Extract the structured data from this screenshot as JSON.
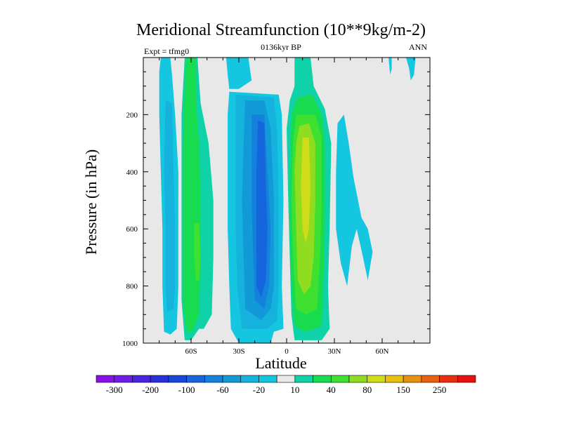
{
  "chart_data": {
    "type": "contour",
    "title": "Meridional Streamfunction (10**9kg/m-2)",
    "subtitle": "0136kyr BP",
    "left_label": "Expt = tfmg0",
    "right_label": "ANN",
    "xlabel": "Latitude",
    "ylabel": "Pressure (in hPa)",
    "x_range": [
      -90,
      90
    ],
    "y_range": [
      0,
      1000
    ],
    "y_reversed": true,
    "x_ticks": [
      {
        "value": -60,
        "label": "60S"
      },
      {
        "value": -30,
        "label": "30S"
      },
      {
        "value": 0,
        "label": "0"
      },
      {
        "value": 30,
        "label": "30N"
      },
      {
        "value": 60,
        "label": "60N"
      }
    ],
    "y_ticks": [
      {
        "value": 200,
        "label": "200"
      },
      {
        "value": 400,
        "label": "400"
      },
      {
        "value": 600,
        "label": "600"
      },
      {
        "value": 800,
        "label": "800"
      },
      {
        "value": 1000,
        "label": "1000"
      }
    ],
    "colorbar": {
      "levels": [
        -300,
        -250,
        -200,
        -150,
        -100,
        -80,
        -60,
        -40,
        -20,
        -10,
        10,
        20,
        40,
        60,
        80,
        100,
        150,
        200,
        250,
        300
      ],
      "colors": [
        "#8a10e8",
        "#6f1ce8",
        "#4a24e0",
        "#2a30d8",
        "#1848d8",
        "#1565dc",
        "#1482dc",
        "#129ad8",
        "#14b2dc",
        "#14c6e0",
        "#e8e8e8",
        "#10d2a8",
        "#18dc50",
        "#40e030",
        "#90dc20",
        "#d0dc18",
        "#e8c010",
        "#e89010",
        "#e86010",
        "#e83010",
        "#e81010"
      ],
      "labels": [
        {
          "level": -300,
          "label": "-300"
        },
        {
          "level": -200,
          "label": "-200"
        },
        {
          "level": -100,
          "label": "-100"
        },
        {
          "level": -60,
          "label": "-60"
        },
        {
          "level": -20,
          "label": "-20"
        },
        {
          "level": 10,
          "label": "10"
        },
        {
          "level": 40,
          "label": "40"
        },
        {
          "level": 80,
          "label": "80"
        },
        {
          "level": 150,
          "label": "150"
        },
        {
          "level": 250,
          "label": "250"
        }
      ]
    },
    "contour_regions": [
      {
        "name": "sh-polar-cell-outer",
        "level": -10,
        "points": [
          [
            -79,
            0
          ],
          [
            -73,
            0
          ],
          [
            -72,
            60
          ],
          [
            -70,
            200
          ],
          [
            -68,
            400
          ],
          [
            -68,
            600
          ],
          [
            -68,
            800
          ],
          [
            -69,
            950
          ],
          [
            -73,
            970
          ],
          [
            -77,
            960
          ],
          [
            -78,
            800
          ],
          [
            -78,
            600
          ],
          [
            -79,
            400
          ],
          [
            -80,
            200
          ],
          [
            -80,
            50
          ]
        ]
      },
      {
        "name": "sh-polar-cell-inner",
        "level": -20,
        "points": [
          [
            -76,
            150
          ],
          [
            -72,
            160
          ],
          [
            -71,
            400
          ],
          [
            -70,
            600
          ],
          [
            -70,
            800
          ],
          [
            -71,
            880
          ],
          [
            -75,
            890
          ],
          [
            -76,
            800
          ],
          [
            -76,
            600
          ],
          [
            -77,
            400
          ]
        ]
      },
      {
        "name": "sh-ferrel-cell-outer",
        "level": 10,
        "points": [
          [
            -64,
            0
          ],
          [
            -56,
            0
          ],
          [
            -56,
            150
          ],
          [
            -54,
            250
          ],
          [
            -52,
            400
          ],
          [
            -52,
            600
          ],
          [
            -52,
            800
          ],
          [
            -55,
            950
          ],
          [
            -60,
            990
          ],
          [
            -64,
            990
          ],
          [
            -66,
            850
          ],
          [
            -66,
            600
          ],
          [
            -66,
            400
          ],
          [
            -66,
            200
          ]
        ]
      },
      {
        "name": "sh-ferrel-cell-outer-fringe",
        "level": 10,
        "points": [
          [
            -60,
            0
          ],
          [
            -56,
            0
          ],
          [
            -54,
            160
          ],
          [
            -49,
            300
          ],
          [
            -46,
            500
          ],
          [
            -46,
            700
          ],
          [
            -47,
            900
          ],
          [
            -52,
            950
          ],
          [
            -56,
            950
          ],
          [
            -56,
            700
          ],
          [
            -57,
            400
          ],
          [
            -58,
            200
          ]
        ]
      },
      {
        "name": "sh-ferrel-cell-inner",
        "level": 20,
        "points": [
          [
            -63,
            0
          ],
          [
            -57,
            0
          ],
          [
            -57,
            150
          ],
          [
            -55,
            300
          ],
          [
            -54,
            500
          ],
          [
            -54,
            700
          ],
          [
            -55,
            900
          ],
          [
            -59,
            960
          ],
          [
            -63,
            960
          ],
          [
            -65,
            850
          ],
          [
            -65,
            600
          ],
          [
            -65,
            300
          ],
          [
            -64,
            100
          ]
        ]
      },
      {
        "name": "sh-ferrel-cell-core",
        "level": 40,
        "points": [
          [
            -58,
            580
          ],
          [
            -55,
            580
          ],
          [
            -54,
            700
          ],
          [
            -55,
            780
          ],
          [
            -57,
            780
          ],
          [
            -58,
            700
          ]
        ]
      },
      {
        "name": "sh-hadley-fringe",
        "level": -10,
        "points": [
          [
            -38,
            0
          ],
          [
            -24,
            0
          ],
          [
            -22,
            80
          ],
          [
            -30,
            110
          ],
          [
            -36,
            110
          ],
          [
            -37,
            60
          ]
        ]
      },
      {
        "name": "sh-hadley-cell-outer",
        "level": -10,
        "points": [
          [
            -36,
            120
          ],
          [
            -5,
            130
          ],
          [
            -3,
            200
          ],
          [
            -2,
            500
          ],
          [
            -3,
            800
          ],
          [
            -2,
            950
          ],
          [
            -8,
            960
          ],
          [
            -10,
            1000
          ],
          [
            -30,
            1000
          ],
          [
            -35,
            950
          ],
          [
            -36,
            800
          ],
          [
            -37,
            600
          ],
          [
            -37,
            400
          ],
          [
            -37,
            200
          ]
        ]
      },
      {
        "name": "sh-hadley-cell-mid",
        "level": -20,
        "points": [
          [
            -32,
            130
          ],
          [
            -8,
            140
          ],
          [
            -6,
            250
          ],
          [
            -5,
            500
          ],
          [
            -5,
            800
          ],
          [
            -6,
            920
          ],
          [
            -12,
            950
          ],
          [
            -28,
            950
          ],
          [
            -31,
            800
          ],
          [
            -32,
            600
          ],
          [
            -32,
            400
          ],
          [
            -32,
            200
          ]
        ]
      },
      {
        "name": "sh-hadley-cell-inner",
        "level": -40,
        "points": [
          [
            -26,
            150
          ],
          [
            -14,
            150
          ],
          [
            -10,
            250
          ],
          [
            -8,
            500
          ],
          [
            -8,
            800
          ],
          [
            -10,
            880
          ],
          [
            -16,
            920
          ],
          [
            -26,
            880
          ],
          [
            -27,
            700
          ],
          [
            -28,
            500
          ],
          [
            -27,
            300
          ]
        ]
      },
      {
        "name": "sh-hadley-cell-core",
        "level": -60,
        "points": [
          [
            -22,
            200
          ],
          [
            -14,
            200
          ],
          [
            -12,
            400
          ],
          [
            -10,
            600
          ],
          [
            -11,
            800
          ],
          [
            -14,
            880
          ],
          [
            -20,
            850
          ],
          [
            -21,
            700
          ],
          [
            -22,
            500
          ]
        ]
      },
      {
        "name": "sh-hadley-cell-center",
        "level": -80,
        "points": [
          [
            -18,
            220
          ],
          [
            -14,
            230
          ],
          [
            -13,
            450
          ],
          [
            -12,
            600
          ],
          [
            -13,
            780
          ],
          [
            -16,
            840
          ],
          [
            -19,
            800
          ],
          [
            -19,
            600
          ],
          [
            -19,
            400
          ]
        ]
      },
      {
        "name": "nh-hadley-cell-outer",
        "level": 10,
        "points": [
          [
            5,
            0
          ],
          [
            15,
            0
          ],
          [
            17,
            100
          ],
          [
            24,
            180
          ],
          [
            28,
            300
          ],
          [
            27,
            600
          ],
          [
            26,
            800
          ],
          [
            27,
            950
          ],
          [
            22,
            990
          ],
          [
            5,
            990
          ],
          [
            3,
            900
          ],
          [
            2,
            700
          ],
          [
            1,
            500
          ],
          [
            0,
            250
          ],
          [
            2,
            150
          ],
          [
            5,
            100
          ]
        ]
      },
      {
        "name": "nh-hadley-cell-mid",
        "level": 20,
        "points": [
          [
            7,
            140
          ],
          [
            16,
            130
          ],
          [
            22,
            200
          ],
          [
            24,
            300
          ],
          [
            24,
            600
          ],
          [
            23,
            800
          ],
          [
            22,
            940
          ],
          [
            12,
            960
          ],
          [
            5,
            940
          ],
          [
            3,
            800
          ],
          [
            2,
            600
          ],
          [
            2,
            400
          ],
          [
            3,
            200
          ]
        ]
      },
      {
        "name": "nh-hadley-cell-inner",
        "level": 40,
        "points": [
          [
            6,
            200
          ],
          [
            18,
            200
          ],
          [
            22,
            280
          ],
          [
            22,
            500
          ],
          [
            21,
            700
          ],
          [
            19,
            880
          ],
          [
            12,
            900
          ],
          [
            6,
            880
          ],
          [
            4,
            700
          ],
          [
            3,
            500
          ],
          [
            4,
            300
          ]
        ]
      },
      {
        "name": "nh-hadley-cell-core",
        "level": 60,
        "points": [
          [
            8,
            240
          ],
          [
            14,
            230
          ],
          [
            18,
            300
          ],
          [
            18,
            500
          ],
          [
            17,
            700
          ],
          [
            15,
            800
          ],
          [
            11,
            830
          ],
          [
            7,
            780
          ],
          [
            6,
            600
          ],
          [
            5,
            400
          ],
          [
            6,
            300
          ]
        ]
      },
      {
        "name": "nh-hadley-cell-center",
        "level": 80,
        "points": [
          [
            10,
            280
          ],
          [
            14,
            280
          ],
          [
            15,
            450
          ],
          [
            14,
            600
          ],
          [
            12,
            650
          ],
          [
            10,
            600
          ],
          [
            9,
            450
          ]
        ]
      },
      {
        "name": "nh-ferrel-cell",
        "level": -10,
        "points": [
          [
            32,
            230
          ],
          [
            36,
            200
          ],
          [
            39,
            300
          ],
          [
            42,
            420
          ],
          [
            47,
            560
          ],
          [
            51,
            600
          ],
          [
            54,
            680
          ],
          [
            51,
            780
          ],
          [
            48,
            700
          ],
          [
            44,
            600
          ],
          [
            41,
            660
          ],
          [
            38,
            800
          ],
          [
            34,
            720
          ],
          [
            31,
            600
          ],
          [
            31,
            400
          ]
        ]
      },
      {
        "name": "nh-polar-fringe-west",
        "level": -10,
        "points": [
          [
            64,
            0
          ],
          [
            66,
            0
          ],
          [
            66,
            40
          ],
          [
            65,
            60
          ]
        ]
      },
      {
        "name": "nh-polar-fringe-east",
        "level": -10,
        "points": [
          [
            75,
            0
          ],
          [
            81,
            0
          ],
          [
            80,
            60
          ],
          [
            78,
            80
          ],
          [
            77,
            40
          ]
        ]
      }
    ]
  }
}
